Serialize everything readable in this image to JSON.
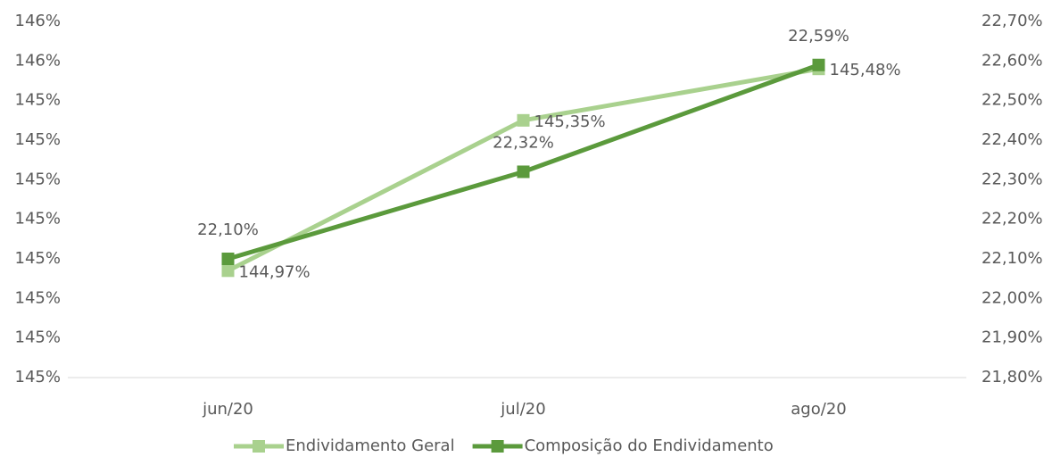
{
  "chart_data": {
    "type": "line",
    "categories": [
      "jun/20",
      "jul/20",
      "ago/20"
    ],
    "series": [
      {
        "name": "Endividamento Geral",
        "color": "#a9d18e",
        "values": [
          144.97,
          145.35,
          145.48
        ],
        "value_labels": [
          "144,97%",
          "145,35%",
          "145,48%"
        ]
      },
      {
        "name": "Composição do Endividamento",
        "color": "#5b9a3c",
        "axis": "y2",
        "values": [
          22.1,
          22.32,
          22.59
        ],
        "value_labels": [
          "22,10%",
          "22,32%",
          "22,59%"
        ]
      }
    ],
    "ylim": [
      144.7,
      145.6
    ],
    "yticks": [
      {
        "value": 144.7,
        "label": "145%"
      },
      {
        "value": 144.8,
        "label": "145%"
      },
      {
        "value": 144.9,
        "label": "145%"
      },
      {
        "value": 145.0,
        "label": "145%"
      },
      {
        "value": 145.1,
        "label": "145%"
      },
      {
        "value": 145.2,
        "label": "145%"
      },
      {
        "value": 145.3,
        "label": "145%"
      },
      {
        "value": 145.4,
        "label": "145%"
      },
      {
        "value": 145.5,
        "label": "146%"
      },
      {
        "value": 145.6,
        "label": "146%"
      }
    ],
    "y2lim": [
      21.8,
      22.7
    ],
    "y2ticks": [
      {
        "value": 21.8,
        "label": "21,80%"
      },
      {
        "value": 21.9,
        "label": "21,90%"
      },
      {
        "value": 22.0,
        "label": "22,00%"
      },
      {
        "value": 22.1,
        "label": "22,10%"
      },
      {
        "value": 22.2,
        "label": "22,20%"
      },
      {
        "value": 22.3,
        "label": "22,30%"
      },
      {
        "value": 22.4,
        "label": "22,40%"
      },
      {
        "value": 22.5,
        "label": "22,50%"
      },
      {
        "value": 22.6,
        "label": "22,60%"
      },
      {
        "value": 22.7,
        "label": "22,70%"
      }
    ],
    "grid": false,
    "legend": "bottom"
  }
}
